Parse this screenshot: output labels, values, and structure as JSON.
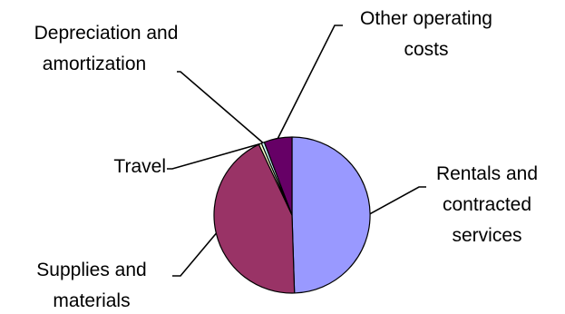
{
  "chart_data": {
    "type": "pie",
    "title": "",
    "slices": [
      {
        "label_lines": [
          "Rentals and",
          "contracted",
          "services"
        ],
        "value": 49.5,
        "color": "#9999ff"
      },
      {
        "label_lines": [
          "Supplies and",
          "materials"
        ],
        "value": 43.5,
        "color": "#993366"
      },
      {
        "label_lines": [
          "Travel"
        ],
        "value": 0.6,
        "color": "#ffffcc"
      },
      {
        "label_lines": [
          "Depreciation and",
          "amortization"
        ],
        "value": 0.6,
        "color": "#ccffff"
      },
      {
        "label_lines": [
          "Other operating",
          "costs"
        ],
        "value": 5.8,
        "color": "#660066"
      }
    ],
    "start_angle_deg": 0,
    "direction": "clockwise",
    "legend": "none"
  }
}
